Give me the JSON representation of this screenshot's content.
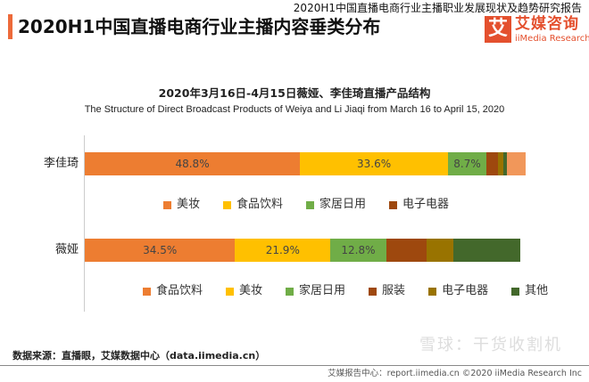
{
  "header": {
    "caption": "2020H1中国直播电商行业主播职业发展现状及趋势研究报告",
    "title": "2020H1中国直播电商行业主播内容垂类分布",
    "logo_mark": "艾",
    "logo_cn": "艾媒咨询",
    "logo_en": "iiMedia Research",
    "accent": "#ed6a3a"
  },
  "chart_data": {
    "type": "bar",
    "orientation": "horizontal",
    "stacked": "100%",
    "title": "2020年3月16日-4月15日薇娅、李佳琦直播产品结构",
    "subtitle": "The Structure of Direct Broadcast Products of Weiya and Li Jiaqi from March 16 to April 15, 2020",
    "groups": [
      {
        "category": "李佳琦",
        "segments": [
          {
            "name": "美妆",
            "value": 48.8,
            "label": "48.8%",
            "color": "#ed7d31"
          },
          {
            "name": "食品饮料",
            "value": 33.6,
            "label": "33.6%",
            "color": "#ffc000"
          },
          {
            "name": "家居日用",
            "value": 8.7,
            "label": "8.7%",
            "color": "#70ad47"
          },
          {
            "name": "电子电器",
            "value": 2.6,
            "color": "#9e480e"
          },
          {
            "value": 1.2,
            "color": "#997300"
          },
          {
            "value": 0.8,
            "color": "#43682b"
          },
          {
            "value": 4.3,
            "color": "#f1975a"
          }
        ],
        "legend": [
          "美妆",
          "食品饮料",
          "家居日用",
          "电子电器"
        ]
      },
      {
        "category": "薇娅",
        "segments": [
          {
            "name": "食品饮料",
            "value": 34.5,
            "label": "34.5%",
            "color": "#ed7d31"
          },
          {
            "name": "美妆",
            "value": 21.9,
            "label": "21.9%",
            "color": "#ffc000"
          },
          {
            "name": "家居日用",
            "value": 12.8,
            "label": "12.8%",
            "color": "#70ad47"
          },
          {
            "name": "服装",
            "value": 9.2,
            "color": "#9e480e"
          },
          {
            "name": "电子电器",
            "value": 6.2,
            "color": "#997300"
          },
          {
            "name": "其他",
            "value": 15.4,
            "color": "#43682b"
          }
        ],
        "legend": [
          "食品饮料",
          "美妆",
          "家居日用",
          "服装",
          "电子电器",
          "其他"
        ]
      }
    ]
  },
  "footer": {
    "source": "数据来源：直播眼，艾媒数据中心（data.iimedia.cn）",
    "report": "艾媒报告中心：report.iimedia.cn  ©2020  iiMedia Research  Inc",
    "watermark": "雪球：干货收割机"
  }
}
